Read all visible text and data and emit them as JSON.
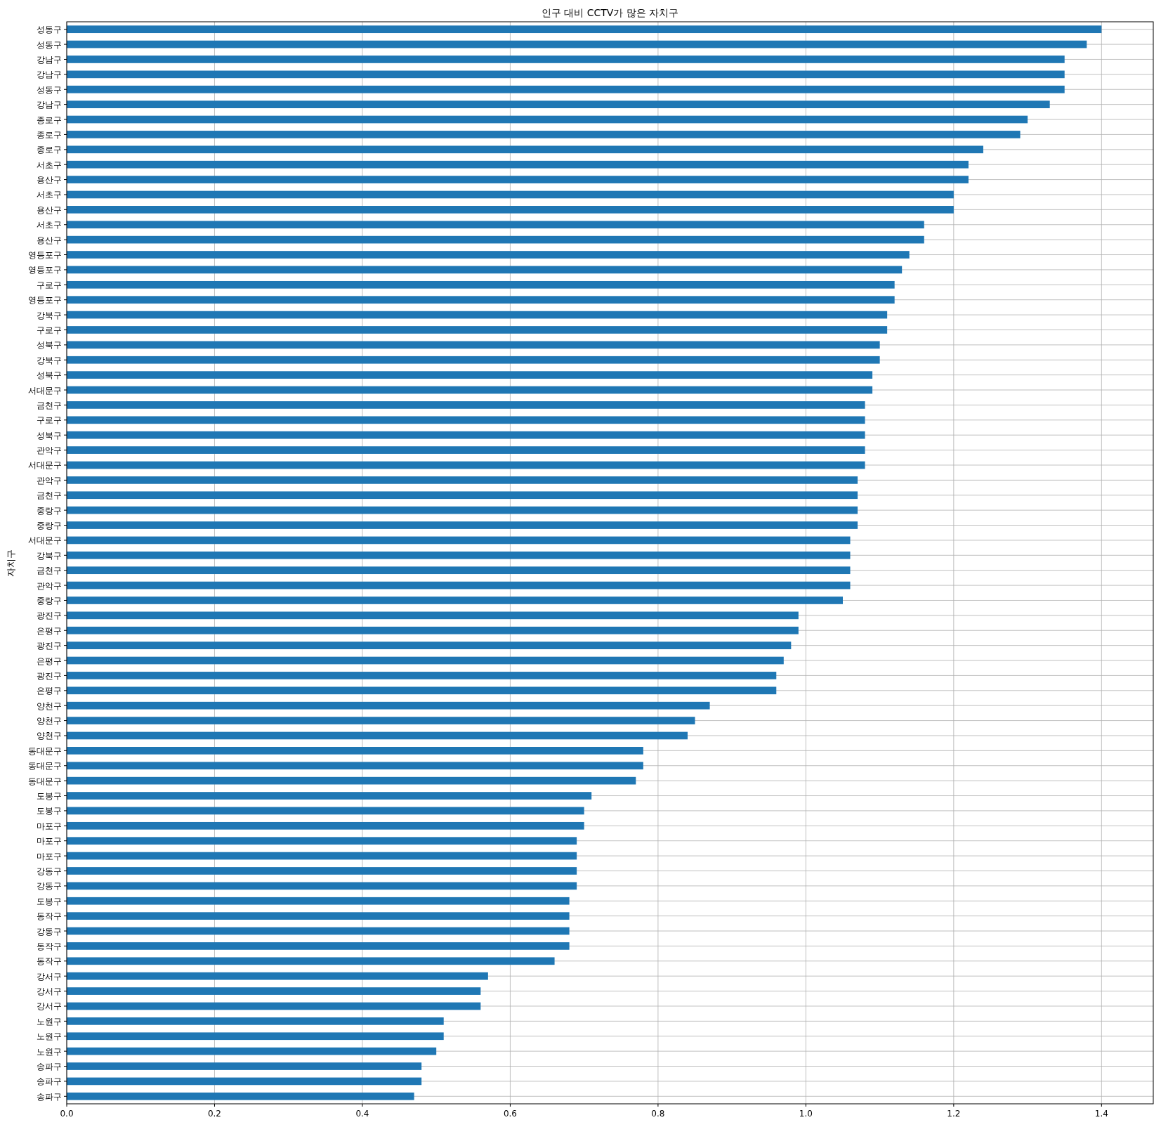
{
  "chart_data": {
    "type": "bar",
    "orientation": "horizontal",
    "title": "인구 대비 CCTV가 많은 자치구",
    "ylabel": "자치구",
    "categories": [
      "성동구",
      "성동구",
      "강남구",
      "강남구",
      "성동구",
      "강남구",
      "종로구",
      "종로구",
      "종로구",
      "서초구",
      "용산구",
      "서초구",
      "용산구",
      "서초구",
      "용산구",
      "영등포구",
      "영등포구",
      "구로구",
      "영등포구",
      "강북구",
      "구로구",
      "성북구",
      "강북구",
      "성북구",
      "서대문구",
      "금천구",
      "구로구",
      "성북구",
      "관악구",
      "서대문구",
      "관악구",
      "금천구",
      "중랑구",
      "중랑구",
      "서대문구",
      "강북구",
      "금천구",
      "관악구",
      "중랑구",
      "광진구",
      "은평구",
      "광진구",
      "은평구",
      "광진구",
      "은평구",
      "양천구",
      "양천구",
      "양천구",
      "동대문구",
      "동대문구",
      "동대문구",
      "도봉구",
      "도봉구",
      "마포구",
      "마포구",
      "마포구",
      "강동구",
      "강동구",
      "도봉구",
      "동작구",
      "강동구",
      "동작구",
      "동작구",
      "강서구",
      "강서구",
      "강서구",
      "노원구",
      "노원구",
      "노원구",
      "송파구",
      "송파구",
      "송파구"
    ],
    "values": [
      1.4,
      1.38,
      1.35,
      1.35,
      1.35,
      1.33,
      1.3,
      1.29,
      1.24,
      1.22,
      1.22,
      1.2,
      1.2,
      1.16,
      1.16,
      1.14,
      1.13,
      1.12,
      1.12,
      1.11,
      1.11,
      1.1,
      1.1,
      1.09,
      1.09,
      1.08,
      1.08,
      1.08,
      1.08,
      1.08,
      1.07,
      1.07,
      1.07,
      1.07,
      1.06,
      1.06,
      1.06,
      1.06,
      1.05,
      0.99,
      0.99,
      0.98,
      0.97,
      0.96,
      0.96,
      0.87,
      0.85,
      0.84,
      0.78,
      0.78,
      0.77,
      0.71,
      0.7,
      0.7,
      0.69,
      0.69,
      0.69,
      0.69,
      0.68,
      0.68,
      0.68,
      0.68,
      0.66,
      0.57,
      0.56,
      0.56,
      0.51,
      0.51,
      0.5,
      0.48,
      0.48,
      0.47
    ],
    "color": "#1f77b4",
    "xlim": [
      0,
      1.47
    ],
    "xticks": [
      {
        "value": 0,
        "label": "0.0"
      },
      {
        "value": 0.2,
        "label": "0.2"
      },
      {
        "value": 0.4,
        "label": "0.4"
      },
      {
        "value": 0.6,
        "label": "0.6"
      },
      {
        "value": 0.8,
        "label": "0.8"
      },
      {
        "value": 1.0,
        "label": "1.0"
      },
      {
        "value": 1.2,
        "label": "1.2"
      },
      {
        "value": 1.4,
        "label": "1.4"
      }
    ],
    "grid": true
  }
}
